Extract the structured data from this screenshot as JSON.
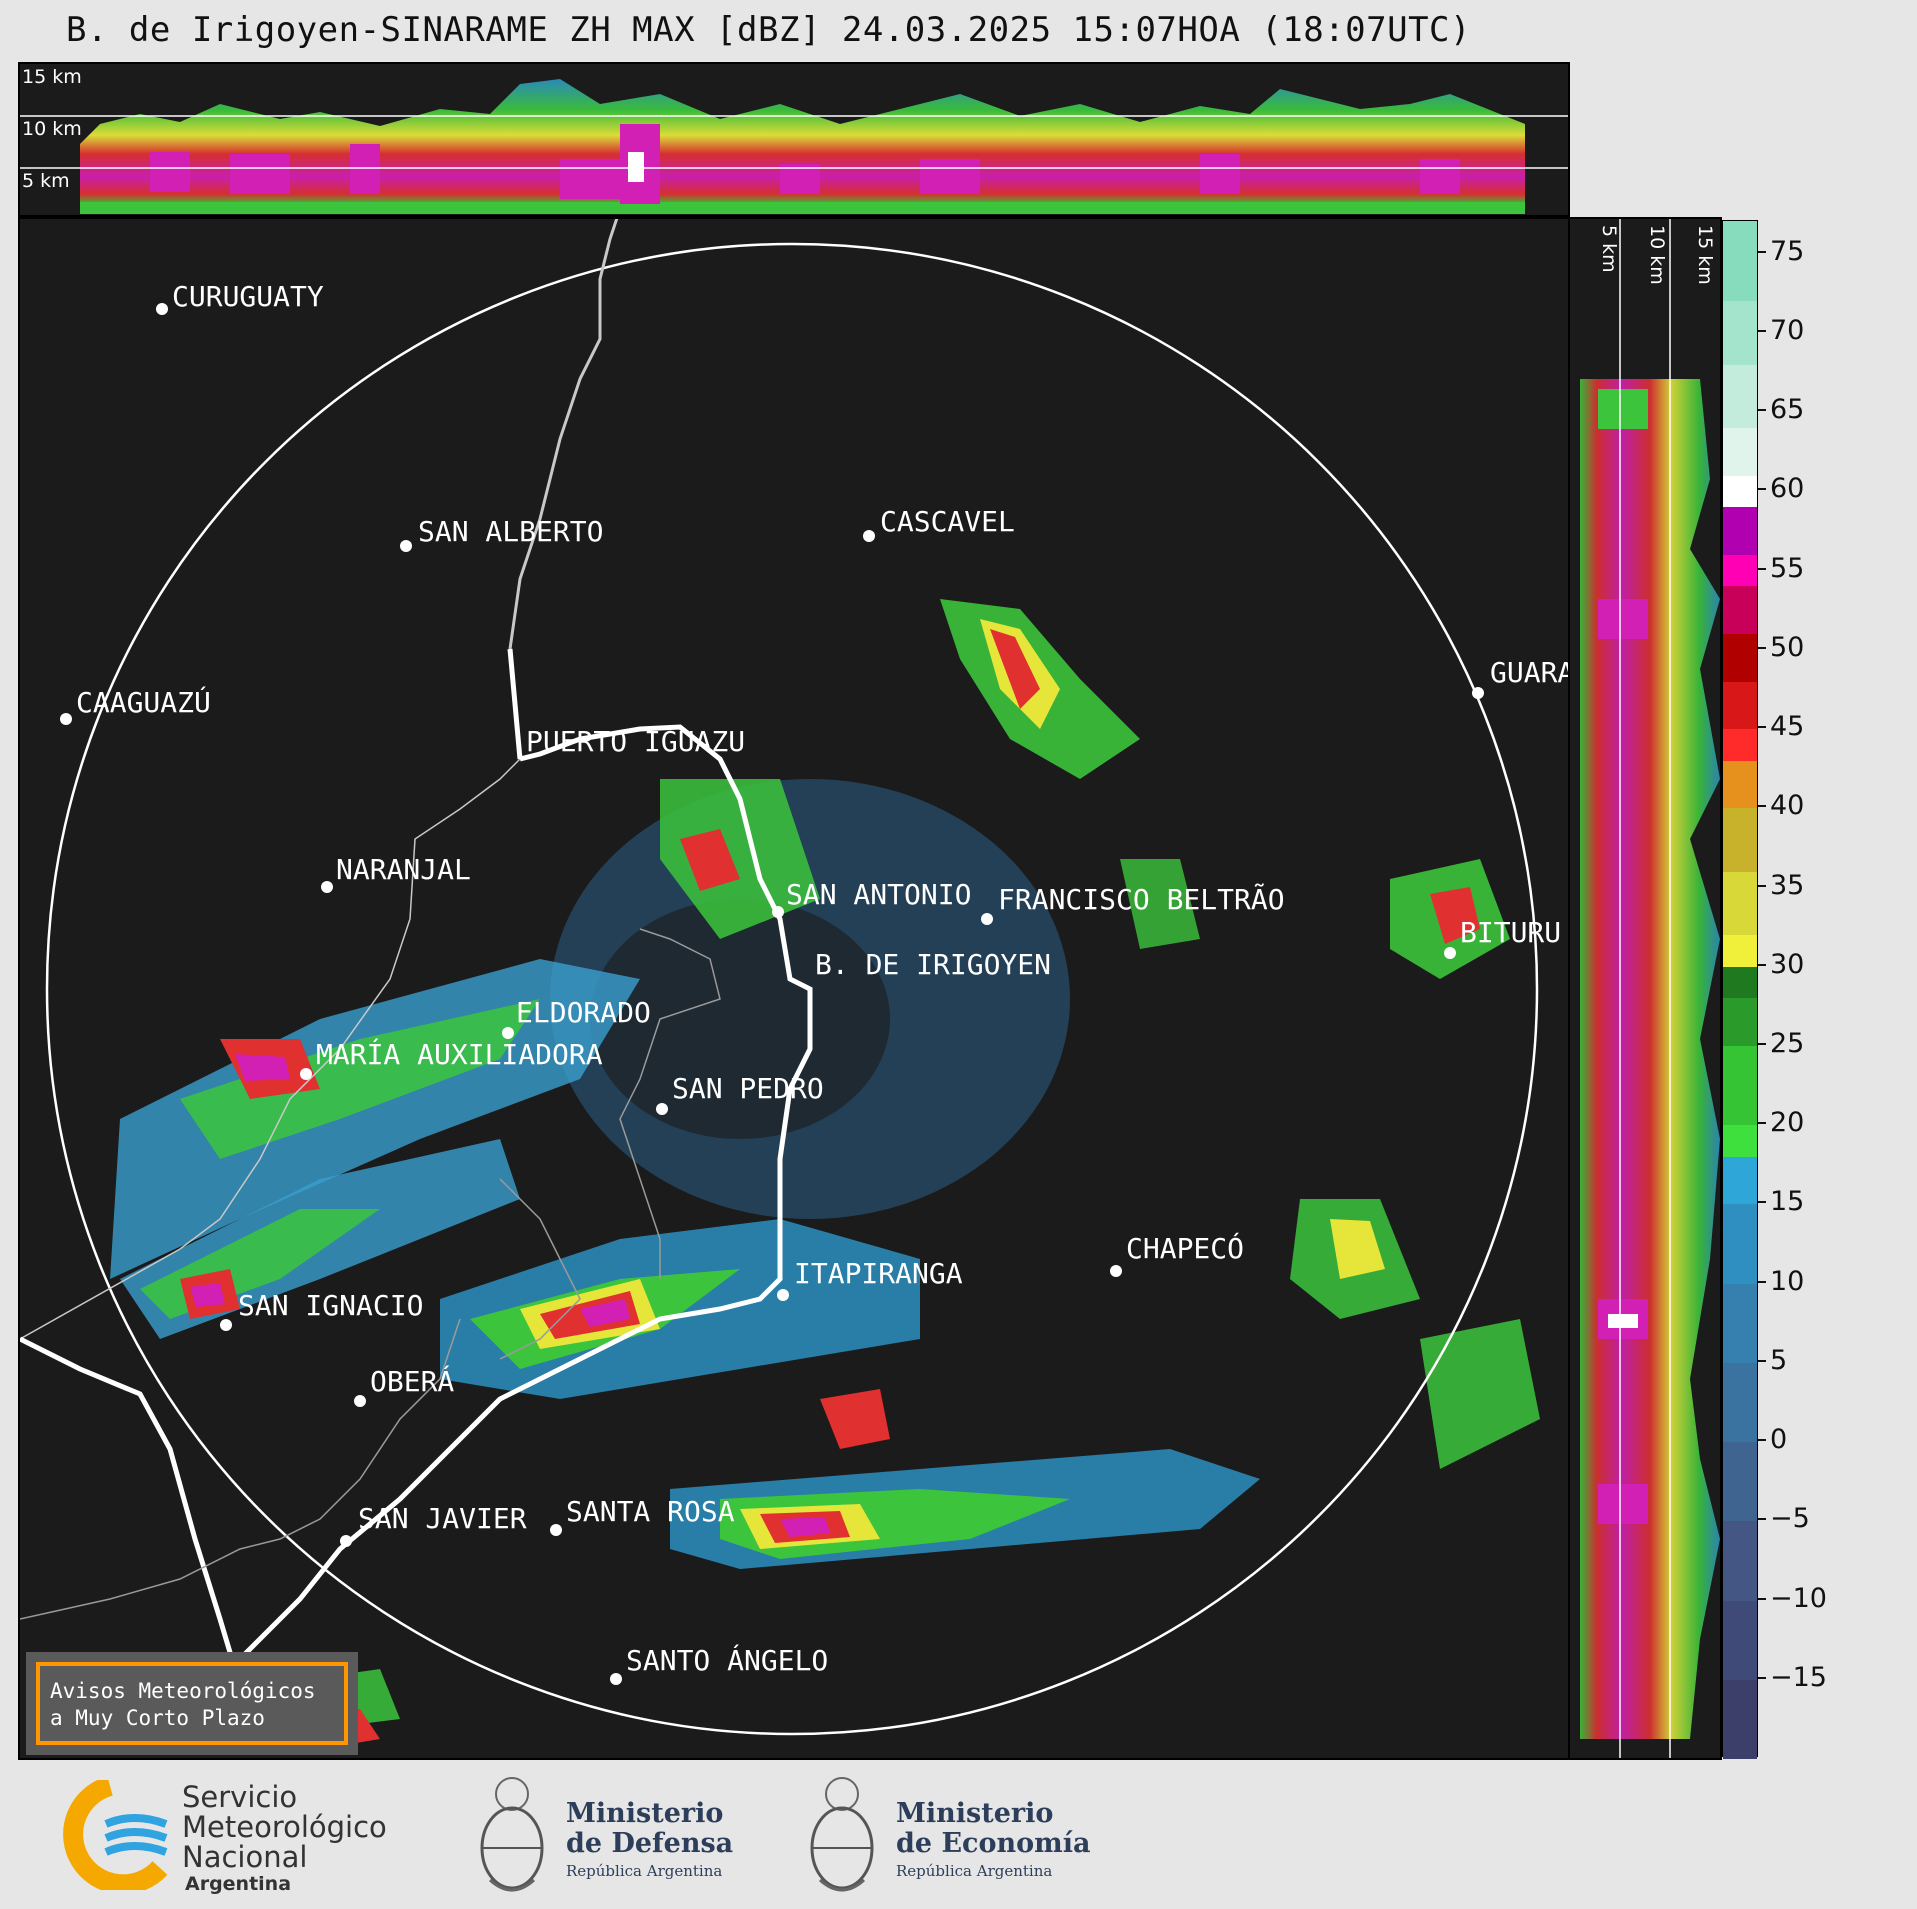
{
  "title": "B. de Irigoyen-SINARAME ZH MAX [dBZ] 24.03.2025 15:07HOA (18:07UTC)",
  "top_panel": {
    "altitude_labels": [
      "15 km",
      "10 km",
      "5 km"
    ]
  },
  "side_panel": {
    "altitude_labels": [
      "5 km",
      "10 km",
      "15 km"
    ]
  },
  "colorbar": {
    "units": "dBZ",
    "tick_labels": [
      "75",
      "70",
      "65",
      "60",
      "55",
      "50",
      "45",
      "40",
      "35",
      "30",
      "25",
      "20",
      "15",
      "10",
      "5",
      "0",
      "−5",
      "−10",
      "−15"
    ],
    "range": [
      -20,
      77
    ]
  },
  "cities": [
    {
      "name": "CURUGUATY"
    },
    {
      "name": "SAN ALBERTO"
    },
    {
      "name": "CASCAVEL"
    },
    {
      "name": "CAAGUAZÚ"
    },
    {
      "name": "GUARA"
    },
    {
      "name": "PUERTO IGUAZU"
    },
    {
      "name": "NARANJAL"
    },
    {
      "name": "SAN ANTONIO"
    },
    {
      "name": "FRANCISCO BELTRÃO"
    },
    {
      "name": "BITURU"
    },
    {
      "name": "B. DE IRIGOYEN"
    },
    {
      "name": "ELDORADO"
    },
    {
      "name": "MARÍA AUXILIADORA"
    },
    {
      "name": "SAN PEDRO"
    },
    {
      "name": "CHAPECÓ"
    },
    {
      "name": "ITAPIRANGA"
    },
    {
      "name": "SAN IGNACIO"
    },
    {
      "name": "OBERÁ"
    },
    {
      "name": "SAN JAVIER"
    },
    {
      "name": "SANTA ROSA"
    },
    {
      "name": "SANTO ÁNGELO"
    }
  ],
  "alert_box": {
    "line1": "Avisos Meteorológicos",
    "line2": "a Muy Corto Plazo"
  },
  "footer": {
    "smn_line1": "Servicio",
    "smn_line2": "Meteorológico",
    "smn_line3": "Nacional",
    "smn_line4": "Argentina",
    "defensa_line1": "Ministerio",
    "defensa_line2": "de Defensa",
    "defensa_line3": "República Argentina",
    "economia_line1": "Ministerio",
    "economia_line2": "de Economía",
    "economia_line3": "República Argentina"
  }
}
